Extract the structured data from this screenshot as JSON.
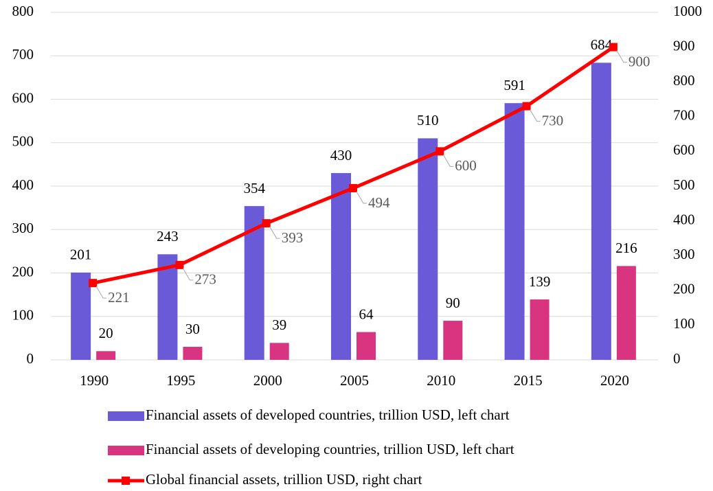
{
  "chart_data": {
    "type": "bar",
    "categories": [
      "1990",
      "1995",
      "2000",
      "2005",
      "2010",
      "2015",
      "2020"
    ],
    "series": [
      {
        "name": "Financial assets of developed countries, trillion USD, left chart",
        "color": "#6a5ad8",
        "type": "bar",
        "values": [
          201,
          243,
          354,
          430,
          510,
          591,
          684
        ]
      },
      {
        "name": "Financial assets of developing countries, trillion USD, left chart",
        "color": "#d9347f",
        "type": "bar",
        "values": [
          20,
          30,
          39,
          64,
          90,
          139,
          216
        ]
      },
      {
        "name": "Global financial assets, trillion USD, right chart",
        "color": "#ff0000",
        "type": "line",
        "axis": "y2",
        "values": [
          221,
          273,
          393,
          494,
          600,
          730,
          900
        ]
      }
    ],
    "ylim": [
      0,
      800
    ],
    "yticks": [
      0,
      100,
      200,
      300,
      400,
      500,
      600,
      700,
      800
    ],
    "y2lim": [
      0,
      1000
    ],
    "y2ticks": [
      0,
      100,
      200,
      300,
      400,
      500,
      600,
      700,
      800,
      900,
      1000
    ],
    "grid": true,
    "legend": "bottom"
  }
}
